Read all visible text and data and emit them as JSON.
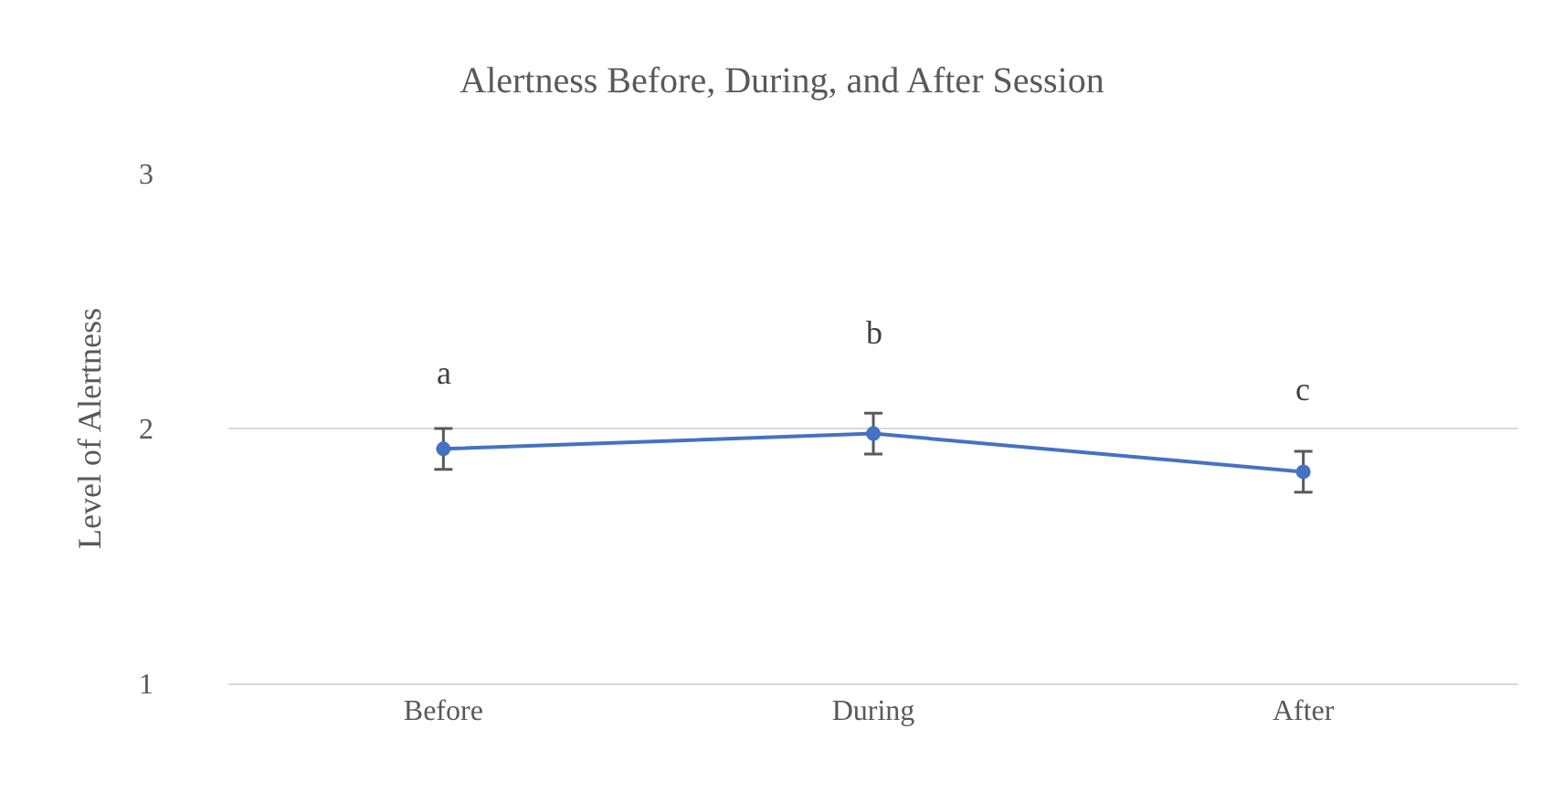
{
  "chart_data": {
    "type": "line",
    "title": "Alertness Before, During, and After Session",
    "ylabel": "Level of Alertness",
    "categories": [
      "Before",
      "During",
      "After"
    ],
    "series": [
      {
        "color": "#4472c4",
        "values": [
          1.92,
          1.98,
          1.83
        ],
        "errors": [
          0.08,
          0.08,
          0.08
        ]
      }
    ],
    "annotations": [
      "a",
      "b",
      "c"
    ],
    "ylim": [
      1,
      3
    ],
    "yticks": [
      1,
      2,
      3
    ],
    "grid": "y",
    "marker": "circle",
    "line_style": "solid",
    "legend": false
  }
}
